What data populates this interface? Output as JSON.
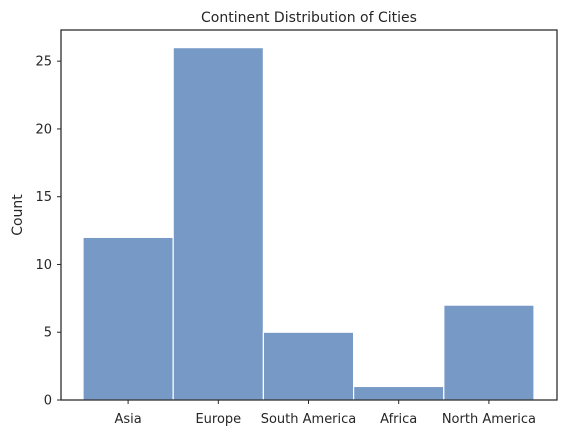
{
  "chart_data": {
    "type": "bar",
    "title": "Continent Distribution of Cities",
    "xlabel": "",
    "ylabel": "Count",
    "categories": [
      "Asia",
      "Europe",
      "South America",
      "Africa",
      "North America"
    ],
    "values": [
      12,
      26,
      5,
      1,
      7
    ],
    "ylim": [
      0,
      27.3
    ],
    "yticks": [
      0,
      5,
      10,
      15,
      20,
      25
    ],
    "bar_color": "#7799c6",
    "grid": false
  }
}
